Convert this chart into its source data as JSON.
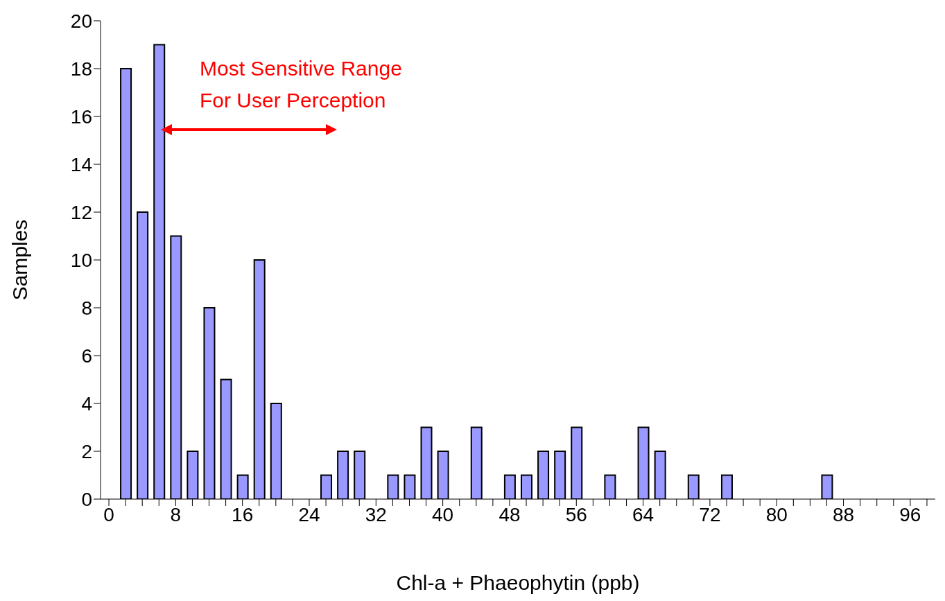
{
  "chart_data": {
    "type": "bar",
    "xlabel": "Chl-a + Phaeophytin (ppb)",
    "ylabel": "Samples",
    "categories": [
      "0",
      null,
      null,
      null,
      "8",
      null,
      null,
      null,
      "16",
      null,
      null,
      null,
      "24",
      null,
      null,
      null,
      "32",
      null,
      null,
      null,
      "40",
      null,
      null,
      null,
      "48",
      null,
      null,
      null,
      "56",
      null,
      null,
      null,
      "64",
      null,
      null,
      null,
      "72",
      null,
      null,
      null,
      "80",
      null,
      null,
      null,
      "88",
      null,
      null,
      null,
      "96",
      null
    ],
    "values": [
      0,
      18,
      12,
      19,
      11,
      2,
      8,
      5,
      1,
      10,
      4,
      0,
      0,
      1,
      2,
      2,
      0,
      1,
      1,
      3,
      2,
      0,
      3,
      0,
      1,
      1,
      2,
      2,
      3,
      0,
      1,
      0,
      3,
      2,
      0,
      1,
      0,
      1,
      0,
      0,
      0,
      0,
      0,
      1,
      0,
      0,
      0,
      0,
      0,
      0
    ],
    "color": "#9999ff",
    "ylim": [
      0,
      20
    ],
    "yticks": [
      0,
      2,
      4,
      6,
      8,
      10,
      12,
      14,
      16,
      18,
      20
    ],
    "grid": false,
    "legend": false,
    "annotations": [
      "Most Sensitive Range\nFor User Perception"
    ]
  }
}
